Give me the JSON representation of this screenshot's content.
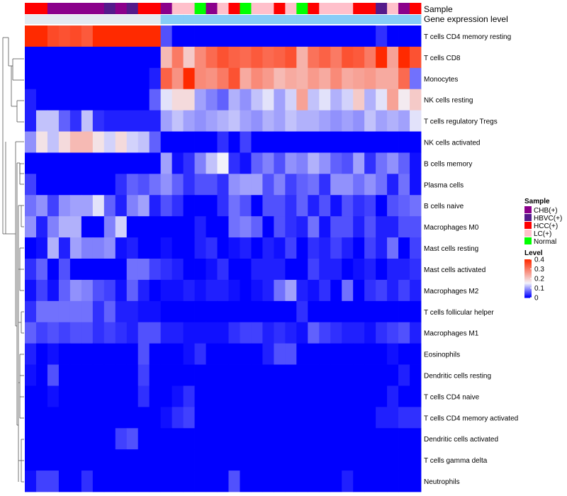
{
  "chart_data": {
    "type": "heatmap",
    "title": "",
    "annotation_tracks": [
      {
        "name": "Sample",
        "label": "Sample"
      },
      {
        "name": "Gene expression level",
        "label": "Gene expression level"
      }
    ],
    "sample_groups": [
      "HCC(+)",
      "HCC(+)",
      "CHB(+)",
      "CHB(+)",
      "CHB(+)",
      "CHB(+)",
      "CHB(+)",
      "HBVC(+)",
      "CHB(+)",
      "HBVC(+)",
      "HCC(+)",
      "HCC(+)",
      "CHB(+)",
      "LC(+)",
      "LC(+)",
      "Normal",
      "CHB(+)",
      "LC(+)",
      "HCC(+)",
      "Normal",
      "LC(+)",
      "LC(+)",
      "HCC(+)",
      "LC(+)",
      "Normal",
      "HCC(+)",
      "LC(+)",
      "LC(+)",
      "LC(+)",
      "HCC(+)",
      "HCC(+)",
      "HBVC(+)",
      "LC(+)",
      "CHB(+)",
      "HCC(+)"
    ],
    "expression_level": [
      "Low",
      "Low",
      "Low",
      "Low",
      "Low",
      "Low",
      "Low",
      "Low",
      "Low",
      "Low",
      "Low",
      "Low",
      "High",
      "High",
      "High",
      "High",
      "High",
      "High",
      "High",
      "High",
      "High",
      "High",
      "High",
      "High",
      "High",
      "High",
      "High",
      "High",
      "High",
      "High",
      "High",
      "High",
      "High",
      "High",
      "High"
    ],
    "expression_level_colors": {
      "Low": "#e3eaf1",
      "High": "#87cdf7"
    },
    "group_colors": {
      "CHB(+)": "#8b008b",
      "HBVC(+)": "#551a8b",
      "HCC(+)": "#ff0000",
      "LC(+)": "#ffc0cb",
      "Normal": "#00ff00"
    },
    "rows": [
      {
        "label": "T cells CD4 memory resting",
        "values": [
          0.4,
          0.4,
          0.36,
          0.35,
          0.36,
          0.34,
          0.4,
          0.4,
          0.4,
          0.4,
          0.4,
          0.4,
          0.05,
          0,
          0,
          0,
          0,
          0,
          0,
          0,
          0,
          0,
          0,
          0,
          0,
          0,
          0,
          0,
          0,
          0,
          0,
          0.03,
          0,
          0,
          0
        ]
      },
      {
        "label": "T cells CD8",
        "values": [
          0,
          0,
          0,
          0,
          0,
          0,
          0,
          0,
          0,
          0,
          0,
          0,
          0.22,
          0.3,
          0.2,
          0.28,
          0.32,
          0.35,
          0.33,
          0.32,
          0.34,
          0.32,
          0.33,
          0.35,
          0.23,
          0.31,
          0.33,
          0.3,
          0.35,
          0.34,
          0.3,
          0.4,
          0.25,
          0.4,
          0.35
        ]
      },
      {
        "label": "Monocytes",
        "values": [
          0,
          0,
          0,
          0,
          0,
          0,
          0,
          0,
          0,
          0,
          0,
          0.02,
          0.33,
          0.27,
          0.4,
          0.28,
          0.27,
          0.3,
          0.35,
          0.24,
          0.28,
          0.26,
          0.22,
          0.24,
          0.23,
          0.26,
          0.24,
          0.28,
          0.24,
          0.25,
          0.26,
          0.24,
          0.24,
          0.32,
          0.07
        ]
      },
      {
        "label": "NK cells resting",
        "values": [
          0.02,
          0,
          0,
          0,
          0,
          0,
          0,
          0,
          0,
          0,
          0,
          0.06,
          0.14,
          0.18,
          0.18,
          0.1,
          0.08,
          0.06,
          0.11,
          0.09,
          0.12,
          0.14,
          0.1,
          0.13,
          0.25,
          0.12,
          0.14,
          0.11,
          0.13,
          0.2,
          0.11,
          0.14,
          0.25,
          0.16,
          0.2
        ]
      },
      {
        "label": "T cells regulatory  Tregs",
        "values": [
          0.02,
          0.12,
          0.12,
          0.06,
          0.03,
          0.12,
          0.03,
          0.02,
          0.02,
          0.02,
          0.02,
          0.02,
          0.1,
          0.12,
          0.1,
          0.09,
          0.1,
          0.11,
          0.12,
          0.1,
          0.09,
          0.11,
          0.1,
          0.12,
          0.11,
          0.11,
          0.1,
          0.09,
          0.1,
          0.09,
          0.12,
          0.1,
          0.11,
          0.1,
          0.14
        ]
      },
      {
        "label": "NK cells activated",
        "values": [
          0.09,
          0.17,
          0.12,
          0.18,
          0.22,
          0.22,
          0.17,
          0.13,
          0.18,
          0.13,
          0.12,
          0.06,
          0,
          0,
          0,
          0,
          0,
          0.03,
          0,
          0.04,
          0,
          0,
          0,
          0,
          0,
          0,
          0,
          0,
          0,
          0,
          0,
          0,
          0,
          0,
          0
        ]
      },
      {
        "label": "B cells memory",
        "values": [
          0,
          0,
          0,
          0,
          0,
          0,
          0,
          0,
          0,
          0,
          0,
          0,
          0.1,
          0.01,
          0.03,
          0.08,
          0.12,
          0.15,
          0.03,
          0.01,
          0.06,
          0.08,
          0.05,
          0.09,
          0.08,
          0.11,
          0.09,
          0.06,
          0.05,
          0.1,
          0.03,
          0.07,
          0.09,
          0.06,
          0.01
        ]
      },
      {
        "label": "Plasma cells",
        "values": [
          0.04,
          0,
          0,
          0,
          0,
          0,
          0,
          0,
          0.03,
          0.06,
          0.05,
          0.07,
          0.09,
          0.06,
          0.03,
          0.05,
          0.05,
          0.03,
          0.09,
          0.1,
          0.1,
          0.05,
          0.08,
          0.04,
          0.06,
          0.07,
          0.03,
          0.09,
          0.09,
          0.07,
          0.09,
          0.07,
          0.02,
          0.07,
          0.01
        ]
      },
      {
        "label": "B cells naive",
        "values": [
          0.07,
          0.09,
          0.04,
          0.09,
          0.1,
          0.1,
          0.14,
          0.06,
          0.02,
          0.08,
          0.1,
          0.02,
          0.05,
          0.03,
          0,
          0,
          0,
          0.03,
          0.07,
          0.05,
          0,
          0.05,
          0.05,
          0.03,
          0.06,
          0.02,
          0.05,
          0.01,
          0.05,
          0.03,
          0.04,
          0,
          0.05,
          0.06,
          0.07
        ]
      },
      {
        "label": "Macrophages M0",
        "values": [
          0.09,
          0.02,
          0.08,
          0.11,
          0.11,
          0,
          0,
          0.08,
          0.13,
          0,
          0,
          0,
          0,
          0,
          0,
          0.02,
          0,
          0,
          0.07,
          0.08,
          0.06,
          0,
          0.05,
          0.03,
          0.02,
          0.07,
          0.01,
          0.05,
          0.05,
          0.02,
          0.05,
          0.02,
          0.02,
          0.05,
          0.05
        ]
      },
      {
        "label": "Mast cells resting",
        "values": [
          0,
          0.01,
          0.11,
          0.02,
          0.1,
          0.08,
          0.08,
          0.09,
          0.01,
          0.02,
          0,
          0,
          0.01,
          0,
          0,
          0.02,
          0.03,
          0,
          0.01,
          0.02,
          0,
          0.02,
          0.01,
          0.04,
          0,
          0.03,
          0.02,
          0.04,
          0.02,
          0,
          0.04,
          0.02,
          0.07,
          0,
          0.04
        ]
      },
      {
        "label": "Mast cells activated",
        "values": [
          0.03,
          0.06,
          0,
          0.05,
          0,
          0,
          0,
          0,
          0,
          0.07,
          0.07,
          0.04,
          0.03,
          0.02,
          0,
          0,
          0.01,
          0.03,
          0,
          0,
          0.02,
          0.02,
          0.02,
          0,
          0,
          0.04,
          0.02,
          0.02,
          0,
          0.01,
          0.02,
          0,
          0.02,
          0.02,
          0.03
        ]
      },
      {
        "label": "Macrophages M2",
        "values": [
          0.01,
          0.04,
          0.01,
          0.06,
          0.09,
          0.08,
          0.05,
          0.04,
          0.01,
          0.06,
          0.02,
          0,
          0.01,
          0.01,
          0.02,
          0.01,
          0.02,
          0.02,
          0.01,
          0,
          0.01,
          0.02,
          0.07,
          0.1,
          0.02,
          0.01,
          0.03,
          0,
          0.07,
          0,
          0.03,
          0.04,
          0.02,
          0.04,
          0.02
        ]
      },
      {
        "label": "T cells follicular helper",
        "values": [
          0.03,
          0.07,
          0.07,
          0.07,
          0.07,
          0.07,
          0.03,
          0.06,
          0.02,
          0.02,
          0.01,
          0.01,
          0,
          0,
          0,
          0,
          0,
          0,
          0,
          0,
          0,
          0,
          0,
          0,
          0.03,
          0,
          0,
          0,
          0,
          0,
          0,
          0,
          0,
          0,
          0
        ]
      },
      {
        "label": "Macrophages M1",
        "values": [
          0.06,
          0.04,
          0.05,
          0.04,
          0.05,
          0.05,
          0.03,
          0.04,
          0.03,
          0.02,
          0.05,
          0.05,
          0.02,
          0.02,
          0.01,
          0.01,
          0.01,
          0.01,
          0.03,
          0.04,
          0.04,
          0.02,
          0.03,
          0.02,
          0.01,
          0.06,
          0.04,
          0.03,
          0.02,
          0.02,
          0.01,
          0.03,
          0.04,
          0.05,
          0.02
        ]
      },
      {
        "label": "Eosinophils",
        "values": [
          0.02,
          0,
          0.01,
          0,
          0,
          0,
          0,
          0,
          0,
          0,
          0.05,
          0,
          0,
          0,
          0.01,
          0.03,
          0,
          0,
          0,
          0,
          0,
          0.02,
          0.05,
          0.05,
          0,
          0,
          0,
          0,
          0,
          0,
          0,
          0,
          0.01,
          0,
          0
        ]
      },
      {
        "label": "Dendritic cells resting",
        "values": [
          0.01,
          0,
          0.05,
          0,
          0,
          0,
          0,
          0,
          0,
          0,
          0.04,
          0,
          0,
          0,
          0,
          0,
          0,
          0,
          0,
          0,
          0,
          0,
          0,
          0,
          0,
          0,
          0,
          0,
          0,
          0,
          0,
          0,
          0,
          0.02,
          0
        ]
      },
      {
        "label": "T cells CD4 naive",
        "values": [
          0,
          0,
          0.01,
          0,
          0,
          0,
          0,
          0,
          0,
          0,
          0.03,
          0,
          0,
          0.01,
          0.03,
          0,
          0,
          0,
          0,
          0,
          0,
          0,
          0,
          0,
          0,
          0,
          0,
          0,
          0,
          0,
          0,
          0,
          0.02,
          0,
          0
        ]
      },
      {
        "label": "T cells CD4 memory activated",
        "values": [
          0,
          0,
          0,
          0,
          0,
          0,
          0,
          0,
          0,
          0,
          0,
          0,
          0.01,
          0.03,
          0.04,
          0,
          0,
          0,
          0,
          0,
          0,
          0,
          0,
          0,
          0,
          0,
          0,
          0,
          0,
          0,
          0,
          0.02,
          0.02,
          0.03,
          0.03
        ]
      },
      {
        "label": "Dendritic cells activated",
        "values": [
          0,
          0,
          0,
          0,
          0,
          0,
          0,
          0,
          0.04,
          0.05,
          0,
          0,
          0,
          0,
          0,
          0,
          0,
          0,
          0,
          0,
          0,
          0,
          0,
          0,
          0,
          0,
          0,
          0,
          0,
          0,
          0,
          0,
          0,
          0,
          0
        ]
      },
      {
        "label": "T cells gamma delta",
        "values": [
          0,
          0,
          0,
          0,
          0,
          0,
          0,
          0,
          0,
          0,
          0,
          0,
          0,
          0,
          0,
          0,
          0,
          0,
          0,
          0,
          0,
          0,
          0,
          0,
          0,
          0,
          0,
          0,
          0,
          0,
          0,
          0,
          0,
          0,
          0
        ]
      },
      {
        "label": "Neutrophils",
        "values": [
          0.01,
          0.04,
          0.04,
          0,
          0,
          0.03,
          0,
          0,
          0,
          0,
          0,
          0,
          0,
          0,
          0,
          0,
          0,
          0,
          0.05,
          0,
          0,
          0,
          0,
          0,
          0,
          0,
          0,
          0,
          0.02,
          0,
          0,
          0,
          0,
          0,
          0
        ]
      }
    ],
    "color_scale": {
      "min": 0,
      "mid": 0.15,
      "max": 0.4,
      "low_color": "#0000ff",
      "mid_color": "#f2f2fa",
      "high_color": "#ff2a00"
    },
    "legends": {
      "sample": {
        "title": "Sample",
        "entries": [
          "CHB(+)",
          "HBVC(+)",
          "HCC(+)",
          "LC(+)",
          "Normal"
        ]
      },
      "level": {
        "title": "Level",
        "ticks": [
          "0.4",
          "0.3",
          "0.2",
          "0.1",
          "0"
        ],
        "tick_values": [
          0.4,
          0.3,
          0.2,
          0.1,
          0
        ]
      }
    },
    "dendrogram": "row clustering tree (left side)"
  }
}
